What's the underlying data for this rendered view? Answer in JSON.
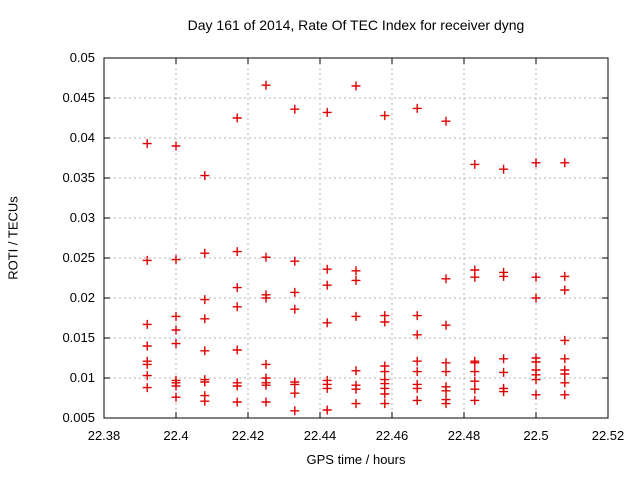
{
  "window": {
    "background": "#ffffff"
  },
  "colors": {
    "marker": "#dd0000",
    "grid": "#b5b5b5",
    "axis": "#000000",
    "background": "#ffffff"
  },
  "chart_data": {
    "type": "scatter",
    "title": "Day 161 of 2014, Rate Of TEC Index for receiver dyng",
    "xlabel": "GPS time / hours",
    "ylabel": "ROTI / TECUs",
    "xlim": [
      22.38,
      22.52
    ],
    "ylim": [
      0.005,
      0.05
    ],
    "xticks": [
      22.38,
      22.4,
      22.42,
      22.44,
      22.46,
      22.48,
      22.5,
      22.52
    ],
    "xtick_labels": [
      "22.38",
      "22.4",
      "22.42",
      "22.44",
      "22.46",
      "22.48",
      "22.5",
      "22.52"
    ],
    "yticks": [
      0.005,
      0.01,
      0.015,
      0.02,
      0.025,
      0.03,
      0.035,
      0.04,
      0.045,
      0.05
    ],
    "ytick_labels": [
      "0.005",
      "0.01",
      "0.015",
      "0.02",
      "0.025",
      "0.03",
      "0.035",
      "0.04",
      "0.045",
      "0.05"
    ],
    "grid": true,
    "grid_style": "dashed",
    "legend": "none",
    "marker": {
      "symbol": "plus",
      "color": "#dd0000",
      "size": 9
    },
    "series": [
      {
        "name": "ROTI",
        "points": [
          [
            22.392,
            0.0393
          ],
          [
            22.392,
            0.0247
          ],
          [
            22.392,
            0.0167
          ],
          [
            22.392,
            0.014
          ],
          [
            22.392,
            0.0121
          ],
          [
            22.392,
            0.0117
          ],
          [
            22.392,
            0.0103
          ],
          [
            22.392,
            0.0088
          ],
          [
            22.4,
            0.039
          ],
          [
            22.4,
            0.0248
          ],
          [
            22.4,
            0.0177
          ],
          [
            22.4,
            0.016
          ],
          [
            22.4,
            0.0143
          ],
          [
            22.4,
            0.0097
          ],
          [
            22.4,
            0.0094
          ],
          [
            22.4,
            0.009
          ],
          [
            22.4,
            0.0076
          ],
          [
            22.408,
            0.0353
          ],
          [
            22.408,
            0.0256
          ],
          [
            22.408,
            0.0198
          ],
          [
            22.408,
            0.0174
          ],
          [
            22.408,
            0.0134
          ],
          [
            22.408,
            0.0098
          ],
          [
            22.408,
            0.0095
          ],
          [
            22.408,
            0.0078
          ],
          [
            22.408,
            0.0071
          ],
          [
            22.417,
            0.0425
          ],
          [
            22.417,
            0.0258
          ],
          [
            22.417,
            0.0213
          ],
          [
            22.417,
            0.0189
          ],
          [
            22.417,
            0.0135
          ],
          [
            22.417,
            0.0094
          ],
          [
            22.417,
            0.009
          ],
          [
            22.417,
            0.007
          ],
          [
            22.425,
            0.0466
          ],
          [
            22.425,
            0.0251
          ],
          [
            22.425,
            0.0204
          ],
          [
            22.425,
            0.02
          ],
          [
            22.425,
            0.0117
          ],
          [
            22.425,
            0.01
          ],
          [
            22.425,
            0.0094
          ],
          [
            22.425,
            0.0091
          ],
          [
            22.425,
            0.007
          ],
          [
            22.433,
            0.0436
          ],
          [
            22.433,
            0.0246
          ],
          [
            22.433,
            0.0207
          ],
          [
            22.433,
            0.0186
          ],
          [
            22.433,
            0.0095
          ],
          [
            22.433,
            0.0092
          ],
          [
            22.433,
            0.0081
          ],
          [
            22.433,
            0.0059
          ],
          [
            22.442,
            0.0432
          ],
          [
            22.442,
            0.0236
          ],
          [
            22.442,
            0.0216
          ],
          [
            22.442,
            0.0169
          ],
          [
            22.442,
            0.0097
          ],
          [
            22.442,
            0.0092
          ],
          [
            22.442,
            0.0087
          ],
          [
            22.442,
            0.006
          ],
          [
            22.45,
            0.0465
          ],
          [
            22.45,
            0.0234
          ],
          [
            22.45,
            0.0222
          ],
          [
            22.45,
            0.0177
          ],
          [
            22.45,
            0.0109
          ],
          [
            22.45,
            0.0091
          ],
          [
            22.45,
            0.0086
          ],
          [
            22.45,
            0.0068
          ],
          [
            22.458,
            0.0428
          ],
          [
            22.458,
            0.0178
          ],
          [
            22.458,
            0.017
          ],
          [
            22.458,
            0.0115
          ],
          [
            22.458,
            0.0108
          ],
          [
            22.458,
            0.0098
          ],
          [
            22.458,
            0.0093
          ],
          [
            22.458,
            0.0087
          ],
          [
            22.458,
            0.008
          ],
          [
            22.458,
            0.0068
          ],
          [
            22.467,
            0.0437
          ],
          [
            22.467,
            0.0178
          ],
          [
            22.467,
            0.0154
          ],
          [
            22.467,
            0.0121
          ],
          [
            22.467,
            0.0108
          ],
          [
            22.467,
            0.0092
          ],
          [
            22.467,
            0.0087
          ],
          [
            22.467,
            0.0072
          ],
          [
            22.475,
            0.0421
          ],
          [
            22.475,
            0.0224
          ],
          [
            22.475,
            0.0166
          ],
          [
            22.475,
            0.0119
          ],
          [
            22.475,
            0.0108
          ],
          [
            22.475,
            0.0089
          ],
          [
            22.475,
            0.0084
          ],
          [
            22.475,
            0.0073
          ],
          [
            22.475,
            0.0068
          ],
          [
            22.483,
            0.0367
          ],
          [
            22.483,
            0.0235
          ],
          [
            22.483,
            0.0226
          ],
          [
            22.483,
            0.0121
          ],
          [
            22.483,
            0.0119
          ],
          [
            22.483,
            0.0108
          ],
          [
            22.483,
            0.0096
          ],
          [
            22.483,
            0.0086
          ],
          [
            22.483,
            0.0072
          ],
          [
            22.491,
            0.0361
          ],
          [
            22.491,
            0.0232
          ],
          [
            22.491,
            0.0227
          ],
          [
            22.491,
            0.0124
          ],
          [
            22.491,
            0.0107
          ],
          [
            22.491,
            0.0087
          ],
          [
            22.491,
            0.0083
          ],
          [
            22.5,
            0.0369
          ],
          [
            22.5,
            0.0226
          ],
          [
            22.5,
            0.02
          ],
          [
            22.5,
            0.0125
          ],
          [
            22.5,
            0.012
          ],
          [
            22.5,
            0.011
          ],
          [
            22.5,
            0.0104
          ],
          [
            22.5,
            0.0098
          ],
          [
            22.5,
            0.0079
          ],
          [
            22.508,
            0.0369
          ],
          [
            22.508,
            0.0227
          ],
          [
            22.508,
            0.021
          ],
          [
            22.508,
            0.0147
          ],
          [
            22.508,
            0.0124
          ],
          [
            22.508,
            0.011
          ],
          [
            22.508,
            0.0105
          ],
          [
            22.508,
            0.0094
          ],
          [
            22.508,
            0.0079
          ]
        ]
      }
    ]
  }
}
